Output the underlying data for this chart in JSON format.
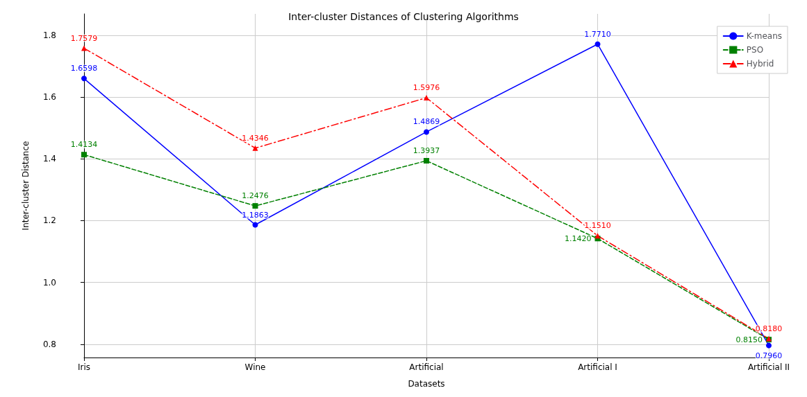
{
  "chart_data": {
    "type": "line",
    "title": "Inter-cluster Distances of Clustering Algorithms",
    "xlabel": "Datasets",
    "ylabel": "Inter-cluster Distance",
    "categories": [
      "Iris",
      "Wine",
      "Artificial",
      "Artificial I",
      "Artificial II"
    ],
    "series": [
      {
        "name": "K-means",
        "color": "#0000ff",
        "marker": "circle",
        "line_style": "solid",
        "values": [
          1.6598,
          1.1863,
          1.4869,
          1.771,
          0.796
        ],
        "value_labels": [
          "1.6598",
          "1.1863",
          "1.4869",
          "1.7710",
          "0.7960"
        ]
      },
      {
        "name": "PSO",
        "color": "#008000",
        "marker": "square",
        "line_style": "dashed",
        "values": [
          1.4134,
          1.2476,
          1.3937,
          1.142,
          0.815
        ],
        "value_labels": [
          "1.4134",
          "1.2476",
          "1.3937",
          "1.1420",
          "0.8150"
        ]
      },
      {
        "name": "Hybrid",
        "color": "#ff0000",
        "marker": "triangle",
        "line_style": "dashdot",
        "values": [
          1.7579,
          1.4346,
          1.5976,
          1.151,
          0.818
        ],
        "value_labels": [
          "1.7579",
          "1.4346",
          "1.5976",
          "1.1510",
          "0.8180"
        ]
      }
    ],
    "ylim": [
      0.757,
      1.869
    ],
    "yticks": [
      0.8,
      {
        "value": 1,
        "label": "1.0"
      },
      1.2,
      1.4,
      1.6,
      1.8
    ],
    "grid": true,
    "legend": "top right"
  }
}
